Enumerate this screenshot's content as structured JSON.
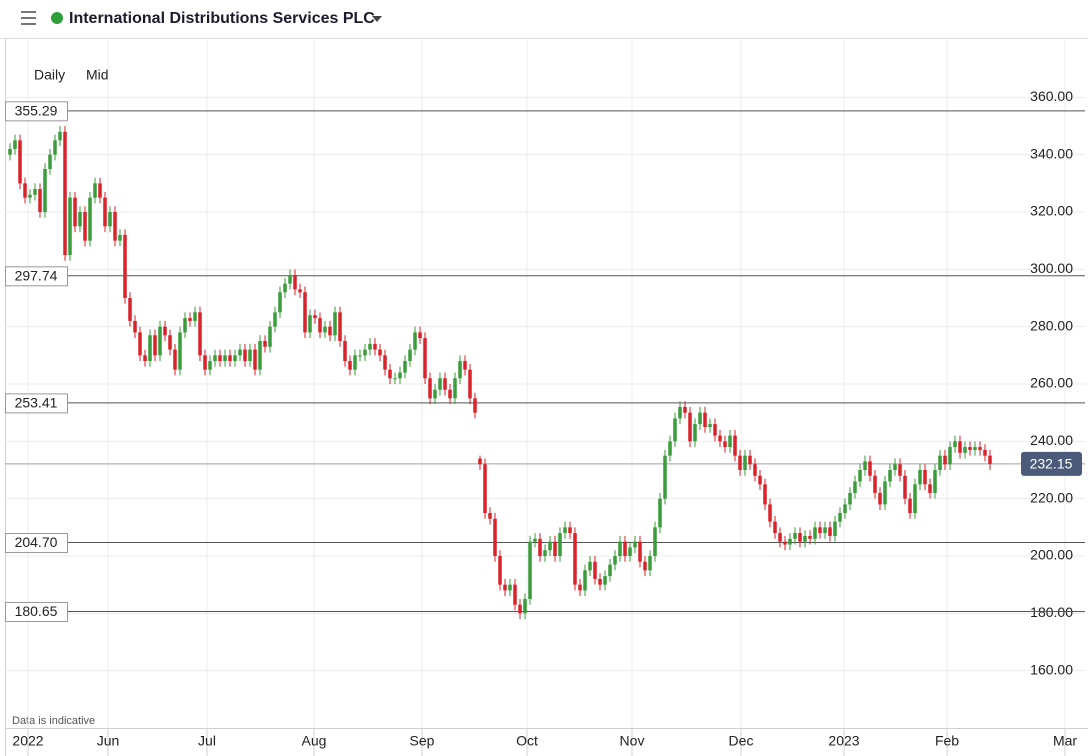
{
  "chart_data": {
    "type": "candlestick",
    "title": "International Distributions Services PLC",
    "interval_label": "Daily",
    "price_label": "Mid",
    "note": "Data is indicative",
    "up_color": "#3a9c3a",
    "down_color": "#d9222a",
    "grid": true,
    "xlim": [
      -1,
      215
    ],
    "xticks": [
      {
        "value": 3.6,
        "label": "2022"
      },
      {
        "value": 19.6,
        "label": "Jun"
      },
      {
        "value": 39.4,
        "label": "Jul"
      },
      {
        "value": 60.8,
        "label": "Aug"
      },
      {
        "value": 82.4,
        "label": "Sep"
      },
      {
        "value": 103.4,
        "label": "Oct"
      },
      {
        "value": 124.4,
        "label": "Nov"
      },
      {
        "value": 146.2,
        "label": "Dec"
      },
      {
        "value": 166.8,
        "label": "2023"
      },
      {
        "value": 187.4,
        "label": "Feb"
      },
      {
        "value": 211,
        "label": "Mar"
      }
    ],
    "ylim": [
      140,
      380
    ],
    "yticks": [
      {
        "value": 160,
        "label": "160.00"
      },
      {
        "value": 180,
        "label": "180.00"
      },
      {
        "value": 200,
        "label": "200.00"
      },
      {
        "value": 220,
        "label": "220.00"
      },
      {
        "value": 240,
        "label": "240.00"
      },
      {
        "value": 260,
        "label": "260.00"
      },
      {
        "value": 280,
        "label": "280.00"
      },
      {
        "value": 300,
        "label": "300.00"
      },
      {
        "value": 320,
        "label": "320.00"
      },
      {
        "value": 340,
        "label": "340.00"
      },
      {
        "value": 360,
        "label": "360.00"
      }
    ],
    "levels": [
      {
        "value": 355.29,
        "label": "355.29"
      },
      {
        "value": 297.74,
        "label": "297.74"
      },
      {
        "value": 253.41,
        "label": "253.41"
      },
      {
        "value": 204.7,
        "label": "204.70"
      },
      {
        "value": 180.65,
        "label": "180.65"
      }
    ],
    "current_price": {
      "value": 232.15,
      "label": "232.15"
    },
    "ohlc": [
      [
        340,
        344,
        338,
        342
      ],
      [
        342,
        347,
        340,
        345
      ],
      [
        345,
        347,
        328,
        330
      ],
      [
        330,
        332,
        323,
        325
      ],
      [
        325,
        328,
        323,
        326
      ],
      [
        326,
        330,
        324,
        328
      ],
      [
        328,
        330,
        318,
        320
      ],
      [
        320,
        337,
        318,
        335
      ],
      [
        335,
        342,
        333,
        340
      ],
      [
        340,
        347,
        338,
        345
      ],
      [
        345,
        350,
        343,
        348
      ],
      [
        348,
        350,
        303,
        305
      ],
      [
        305,
        327,
        303,
        325
      ],
      [
        325,
        327,
        313,
        315
      ],
      [
        315,
        322,
        313,
        320
      ],
      [
        320,
        322,
        308,
        310
      ],
      [
        310,
        327,
        308,
        325
      ],
      [
        325,
        332,
        323,
        330
      ],
      [
        330,
        332,
        323,
        325
      ],
      [
        325,
        327,
        313,
        315
      ],
      [
        315,
        322,
        313,
        320
      ],
      [
        320,
        322,
        308,
        310
      ],
      [
        310,
        314,
        308,
        312
      ],
      [
        312,
        314,
        288,
        290
      ],
      [
        290,
        292,
        280,
        282
      ],
      [
        282,
        284,
        276,
        278
      ],
      [
        278,
        280,
        268,
        270
      ],
      [
        270,
        272,
        266,
        268
      ],
      [
        268,
        279,
        266,
        277
      ],
      [
        277,
        279,
        268,
        270
      ],
      [
        270,
        282,
        268,
        280
      ],
      [
        280,
        282,
        275,
        277
      ],
      [
        277,
        279,
        270,
        272
      ],
      [
        272,
        274,
        263,
        265
      ],
      [
        265,
        280,
        263,
        278
      ],
      [
        278,
        285,
        276,
        283
      ],
      [
        283,
        285,
        280,
        282
      ],
      [
        282,
        287,
        280,
        285
      ],
      [
        285,
        287,
        268,
        270
      ],
      [
        270,
        272,
        263,
        265
      ],
      [
        265,
        270,
        263,
        268
      ],
      [
        268,
        272,
        266,
        270
      ],
      [
        270,
        272,
        266,
        268
      ],
      [
        268,
        272,
        266,
        270
      ],
      [
        270,
        272,
        266,
        268
      ],
      [
        268,
        272,
        266,
        270
      ],
      [
        270,
        274,
        268,
        272
      ],
      [
        272,
        274,
        266,
        268
      ],
      [
        268,
        274,
        266,
        272
      ],
      [
        272,
        274,
        263,
        265
      ],
      [
        265,
        277,
        263,
        275
      ],
      [
        275,
        277,
        271,
        273
      ],
      [
        273,
        282,
        271,
        280
      ],
      [
        280,
        287,
        278,
        285
      ],
      [
        285,
        294,
        283,
        292
      ],
      [
        292,
        297,
        290,
        295
      ],
      [
        295,
        300,
        293,
        298
      ],
      [
        298,
        300,
        291,
        293
      ],
      [
        293,
        295,
        290,
        292
      ],
      [
        292,
        294,
        276,
        278
      ],
      [
        278,
        286,
        276,
        284
      ],
      [
        284,
        286,
        281,
        283
      ],
      [
        283,
        285,
        276,
        278
      ],
      [
        278,
        282,
        276,
        280
      ],
      [
        280,
        282,
        275,
        277
      ],
      [
        277,
        287,
        275,
        285
      ],
      [
        285,
        287,
        273,
        275
      ],
      [
        275,
        277,
        266,
        268
      ],
      [
        268,
        270,
        263,
        265
      ],
      [
        265,
        272,
        263,
        270
      ],
      [
        270,
        272,
        268,
        270
      ],
      [
        270,
        274,
        268,
        272
      ],
      [
        272,
        276,
        270,
        274
      ],
      [
        274,
        276,
        270,
        272
      ],
      [
        272,
        274,
        268,
        270
      ],
      [
        270,
        272,
        263,
        265
      ],
      [
        265,
        267,
        260,
        262
      ],
      [
        262,
        264,
        260,
        262
      ],
      [
        262,
        266,
        260,
        264
      ],
      [
        264,
        270,
        262,
        268
      ],
      [
        268,
        274,
        266,
        272
      ],
      [
        272,
        280,
        270,
        278
      ],
      [
        278,
        280,
        274,
        276
      ],
      [
        276,
        278,
        260,
        262
      ],
      [
        262,
        264,
        253,
        255
      ],
      [
        255,
        260,
        253,
        258
      ],
      [
        258,
        264,
        256,
        262
      ],
      [
        262,
        264,
        256,
        258
      ],
      [
        258,
        260,
        253,
        255
      ],
      [
        255,
        264,
        253,
        262
      ],
      [
        262,
        270,
        260,
        268
      ],
      [
        268,
        270,
        263,
        265
      ],
      [
        265,
        267,
        253,
        255
      ],
      [
        255,
        257,
        248,
        250
      ],
      [
        234,
        235,
        230,
        232
      ],
      [
        232,
        234,
        213,
        215
      ],
      [
        215,
        217,
        211,
        213
      ],
      [
        213,
        215,
        198,
        200
      ],
      [
        200,
        202,
        188,
        190
      ],
      [
        190,
        192,
        186,
        188
      ],
      [
        188,
        192,
        186,
        190
      ],
      [
        190,
        192,
        181,
        183
      ],
      [
        183,
        185,
        178,
        180
      ],
      [
        180,
        187,
        178,
        185
      ],
      [
        185,
        207,
        183,
        205
      ],
      [
        205,
        208,
        203,
        206
      ],
      [
        206,
        208,
        198,
        200
      ],
      [
        200,
        204,
        198,
        202
      ],
      [
        202,
        207,
        200,
        205
      ],
      [
        205,
        207,
        198,
        200
      ],
      [
        200,
        210,
        198,
        208
      ],
      [
        208,
        212,
        206,
        210
      ],
      [
        210,
        212,
        206,
        208
      ],
      [
        208,
        210,
        188,
        190
      ],
      [
        190,
        192,
        186,
        188
      ],
      [
        188,
        197,
        186,
        195
      ],
      [
        195,
        200,
        193,
        198
      ],
      [
        198,
        200,
        190,
        192
      ],
      [
        192,
        194,
        188,
        190
      ],
      [
        190,
        195,
        188,
        193
      ],
      [
        193,
        199,
        191,
        197
      ],
      [
        197,
        202,
        195,
        200
      ],
      [
        200,
        207,
        198,
        205
      ],
      [
        205,
        207,
        198,
        200
      ],
      [
        200,
        205,
        198,
        203
      ],
      [
        203,
        207,
        201,
        205
      ],
      [
        205,
        207,
        196,
        198
      ],
      [
        198,
        200,
        193,
        195
      ],
      [
        195,
        202,
        193,
        200
      ],
      [
        200,
        212,
        198,
        210
      ],
      [
        210,
        222,
        208,
        220
      ],
      [
        220,
        237,
        218,
        235
      ],
      [
        235,
        242,
        233,
        240
      ],
      [
        240,
        250,
        238,
        248
      ],
      [
        248,
        254,
        246,
        252
      ],
      [
        252,
        254,
        248,
        250
      ],
      [
        250,
        252,
        238,
        240
      ],
      [
        240,
        248,
        238,
        246
      ],
      [
        246,
        252,
        244,
        250
      ],
      [
        250,
        252,
        243,
        245
      ],
      [
        245,
        248,
        243,
        246
      ],
      [
        246,
        248,
        240,
        242
      ],
      [
        242,
        244,
        238,
        240
      ],
      [
        240,
        242,
        236,
        238
      ],
      [
        238,
        244,
        236,
        242
      ],
      [
        242,
        244,
        233,
        235
      ],
      [
        235,
        237,
        228,
        230
      ],
      [
        230,
        237,
        228,
        235
      ],
      [
        235,
        237,
        230,
        232
      ],
      [
        232,
        234,
        226,
        228
      ],
      [
        228,
        230,
        223,
        225
      ],
      [
        225,
        227,
        216,
        218
      ],
      [
        218,
        220,
        210,
        212
      ],
      [
        212,
        214,
        206,
        208
      ],
      [
        208,
        210,
        203,
        205
      ],
      [
        205,
        207,
        202,
        204
      ],
      [
        204,
        208,
        202,
        206
      ],
      [
        206,
        210,
        204,
        208
      ],
      [
        208,
        210,
        203,
        205
      ],
      [
        205,
        209,
        203,
        207
      ],
      [
        207,
        209,
        204,
        206
      ],
      [
        206,
        212,
        204,
        210
      ],
      [
        210,
        212,
        206,
        208
      ],
      [
        208,
        212,
        206,
        210
      ],
      [
        210,
        212,
        205,
        207
      ],
      [
        207,
        214,
        205,
        212
      ],
      [
        212,
        217,
        210,
        215
      ],
      [
        215,
        220,
        213,
        218
      ],
      [
        218,
        224,
        216,
        222
      ],
      [
        222,
        228,
        220,
        226
      ],
      [
        226,
        232,
        224,
        230
      ],
      [
        230,
        235,
        228,
        233
      ],
      [
        233,
        235,
        226,
        228
      ],
      [
        228,
        230,
        220,
        222
      ],
      [
        222,
        224,
        216,
        218
      ],
      [
        218,
        228,
        216,
        226
      ],
      [
        226,
        232,
        224,
        230
      ],
      [
        230,
        234,
        228,
        232
      ],
      [
        232,
        234,
        226,
        228
      ],
      [
        228,
        230,
        218,
        220
      ],
      [
        220,
        222,
        213,
        215
      ],
      [
        215,
        227,
        213,
        225
      ],
      [
        225,
        232,
        223,
        230
      ],
      [
        230,
        232,
        223,
        225
      ],
      [
        225,
        227,
        220,
        222
      ],
      [
        222,
        232,
        220,
        230
      ],
      [
        230,
        237,
        228,
        235
      ],
      [
        235,
        237,
        230,
        232
      ],
      [
        232,
        240,
        230,
        238
      ],
      [
        238,
        242,
        236,
        240
      ],
      [
        240,
        242,
        234,
        236
      ],
      [
        236,
        240,
        234,
        238
      ],
      [
        238,
        240,
        235,
        237
      ],
      [
        237,
        240,
        235,
        238
      ],
      [
        238,
        240,
        235,
        237
      ],
      [
        237,
        239,
        233,
        235
      ],
      [
        235,
        237,
        230,
        232.15
      ]
    ]
  }
}
